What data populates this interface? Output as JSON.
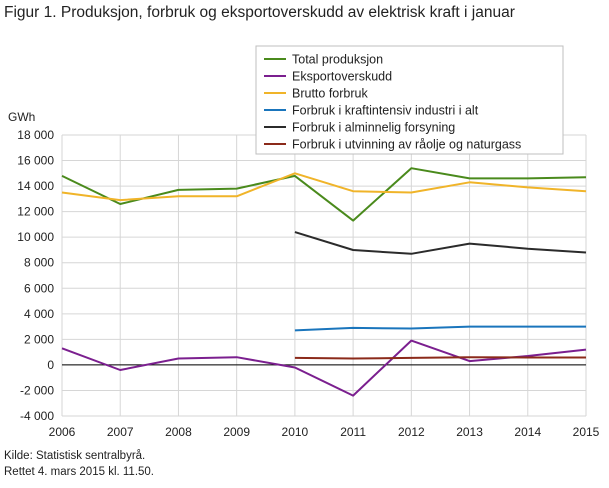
{
  "title": "Figur 1. Produksjon, forbruk og eksportoverskudd av elektrisk kraft i januar",
  "source_line1": "Kilde: Statistisk sentralbyrå.",
  "source_line2": "Rettet 4. mars 2015 kl. 11.50.",
  "chart_data": {
    "type": "line",
    "ylabel": "GWh",
    "xlabel": "",
    "x": [
      2006,
      2007,
      2008,
      2009,
      2010,
      2011,
      2012,
      2013,
      2014,
      2015
    ],
    "ylim": [
      -4000,
      18000
    ],
    "yticks": [
      -4000,
      -2000,
      0,
      2000,
      4000,
      6000,
      8000,
      10000,
      12000,
      14000,
      16000,
      18000
    ],
    "ytick_labels": [
      "-4 000",
      "-2 000",
      "0",
      "2 000",
      "4 000",
      "6 000",
      "8 000",
      "10 000",
      "12 000",
      "14 000",
      "16 000",
      "18 000"
    ],
    "xtick_labels": [
      "2006",
      "2007",
      "2008",
      "2009",
      "2010",
      "2011",
      "2012",
      "2013",
      "2014",
      "2015"
    ],
    "grid": true,
    "legend_position": "top-right",
    "series": [
      {
        "name": "Total produksjon",
        "color": "#4a8a1c",
        "values": [
          14800,
          12600,
          13700,
          13800,
          14800,
          11300,
          15400,
          14600,
          14600,
          14700
        ]
      },
      {
        "name": "Eksportoverskudd",
        "color": "#7b1f8f",
        "values": [
          1300,
          -400,
          500,
          600,
          -200,
          -2400,
          1900,
          300,
          700,
          1200
        ]
      },
      {
        "name": "Brutto forbruk",
        "color": "#f0b429",
        "values": [
          13500,
          12900,
          13200,
          13200,
          15000,
          13600,
          13500,
          14300,
          13900,
          13600
        ]
      },
      {
        "name": "Forbruk i kraftintensiv industri i alt",
        "color": "#1a75bc",
        "values": [
          null,
          null,
          null,
          null,
          2700,
          2900,
          2850,
          3000,
          3000,
          3000
        ]
      },
      {
        "name": "Forbruk i alminnelig forsyning",
        "color": "#2b2b2b",
        "values": [
          null,
          null,
          null,
          null,
          10400,
          9000,
          8700,
          9500,
          9100,
          8800
        ]
      },
      {
        "name": "Forbruk i utvinning av råolje og naturgass",
        "color": "#8b2a1a",
        "values": [
          null,
          null,
          null,
          null,
          550,
          500,
          550,
          600,
          580,
          580
        ]
      }
    ]
  }
}
